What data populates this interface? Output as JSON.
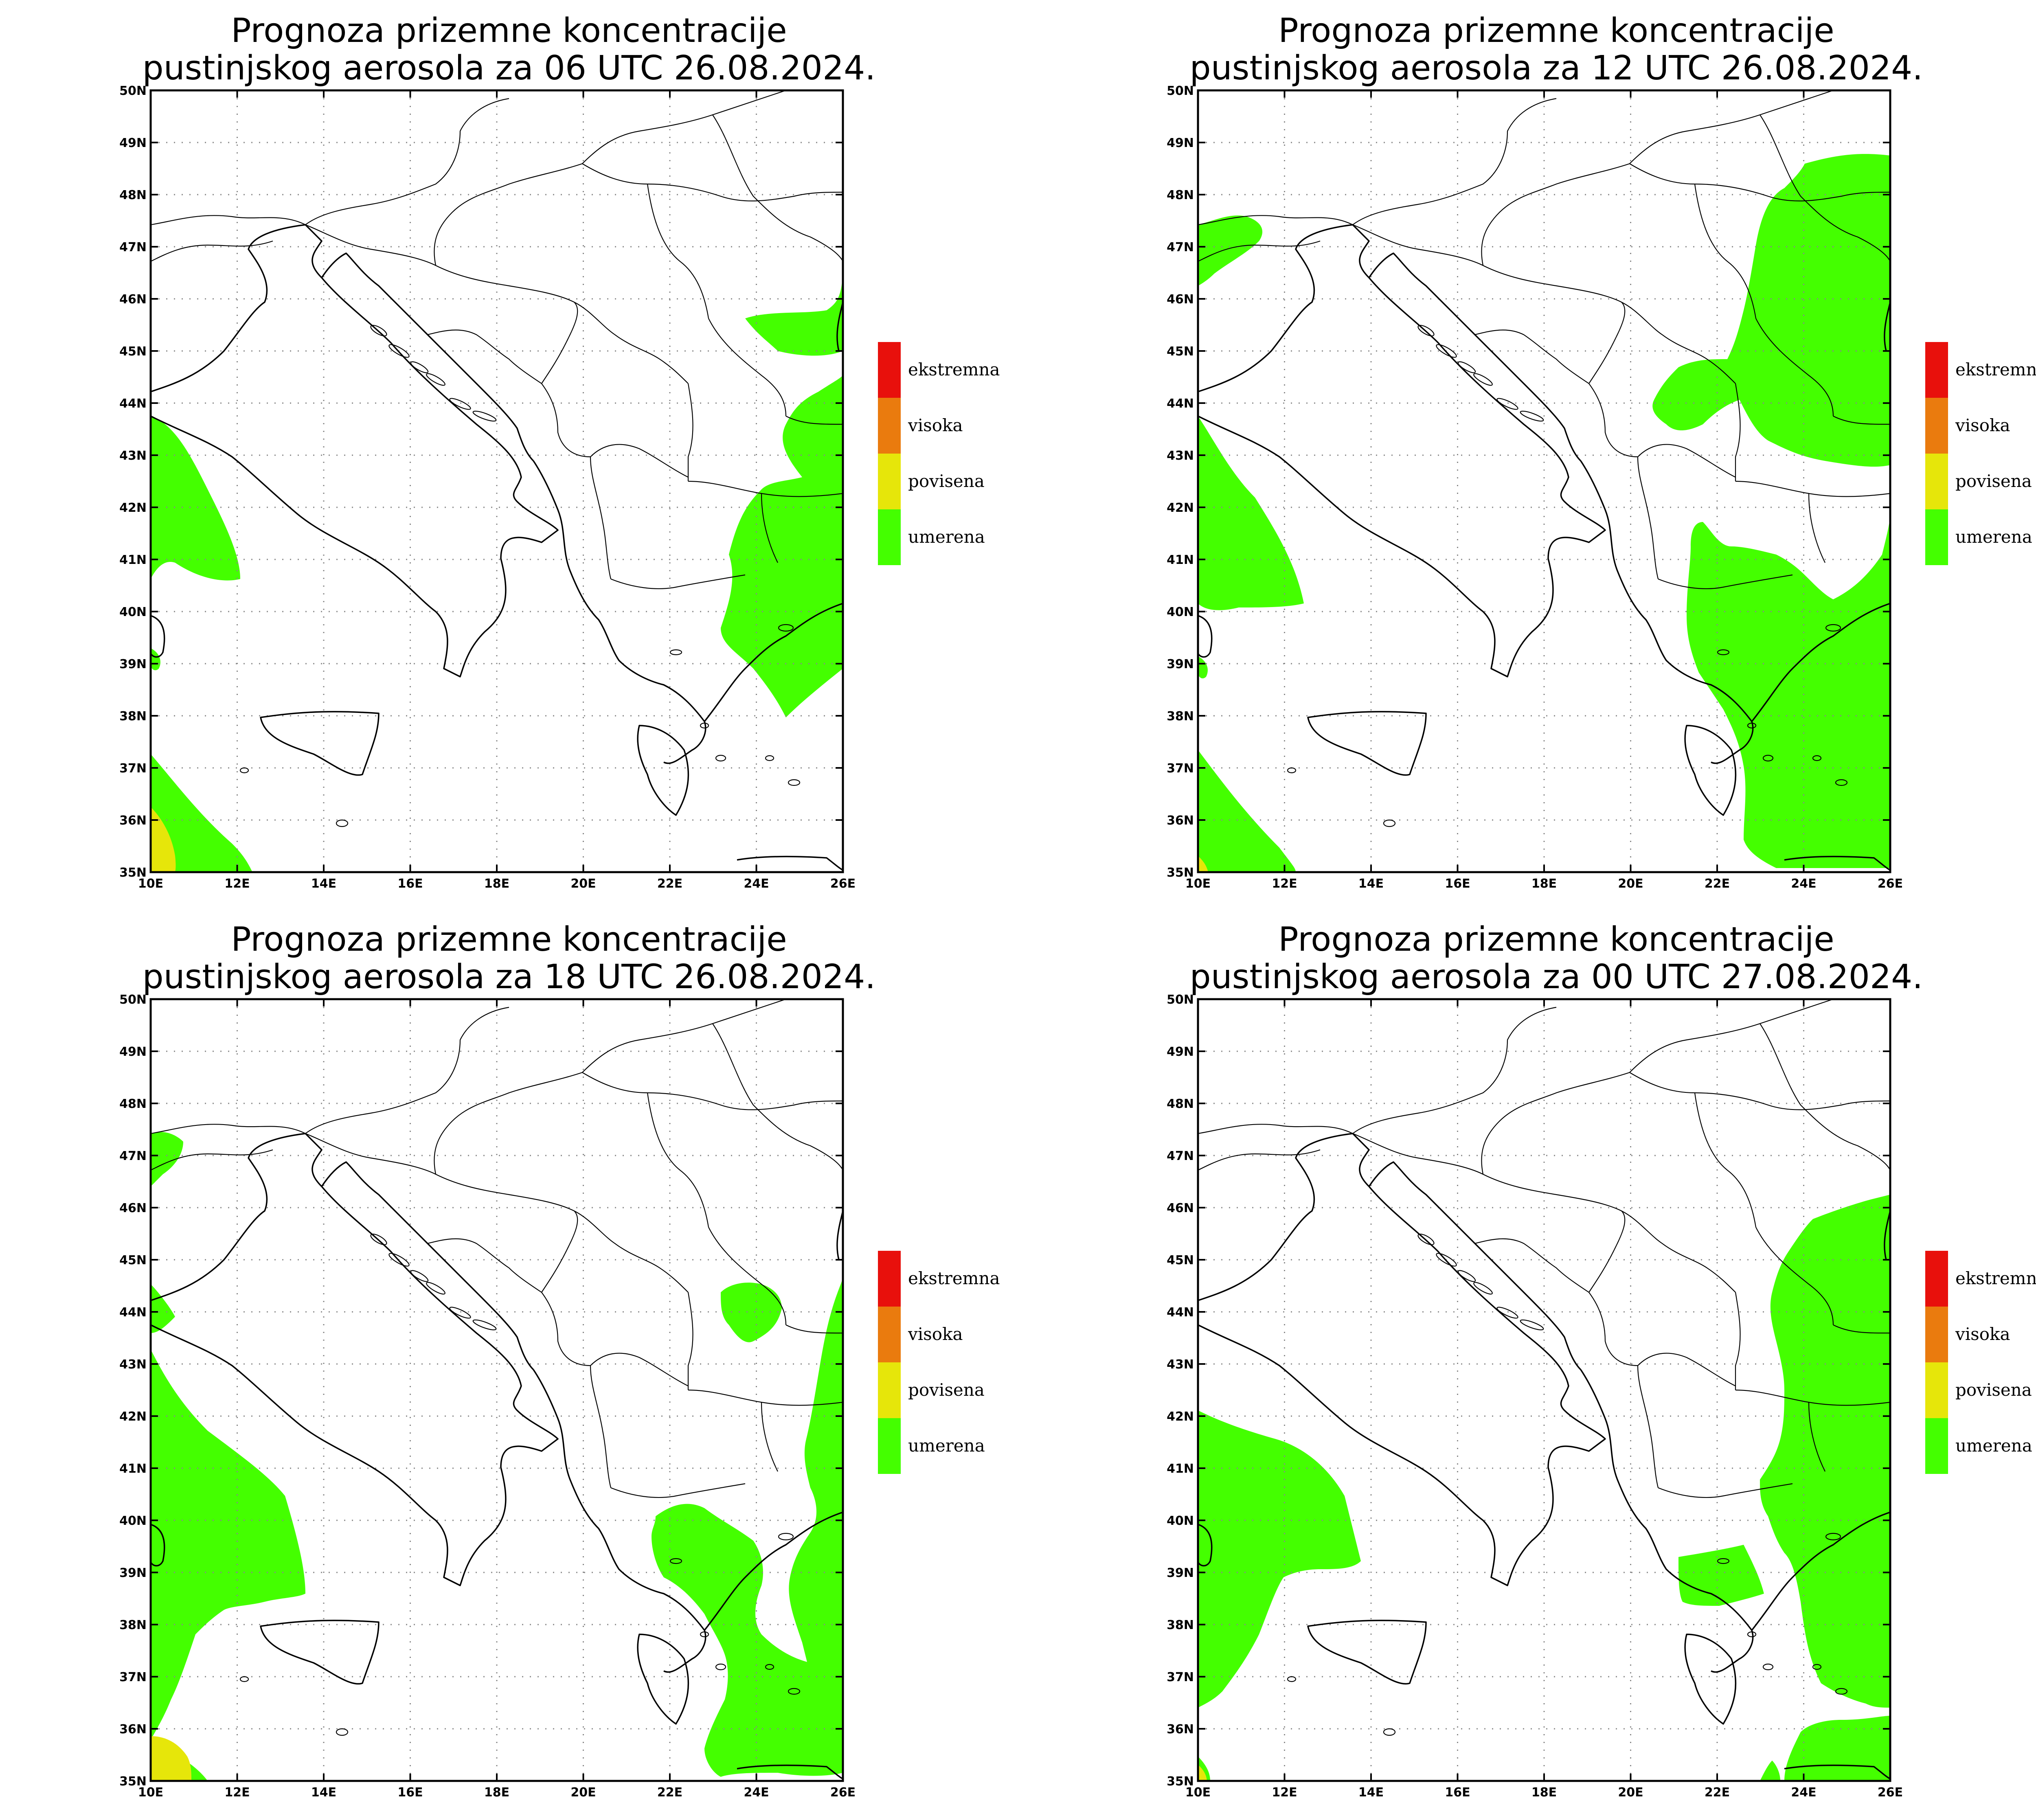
{
  "panels": [
    {
      "title_line1": "Prognoza prizemne koncentracije",
      "title_line2": "pustinjskog aerosola za 06 UTC 26.08.2024."
    },
    {
      "title_line1": "Prognoza prizemne koncentracije",
      "title_line2": "pustinjskog aerosola za 12 UTC 26.08.2024."
    },
    {
      "title_line1": "Prognoza prizemne koncentracije",
      "title_line2": "pustinjskog aerosola za 18 UTC 26.08.2024."
    },
    {
      "title_line1": "Prognoza prizemne koncentracije",
      "title_line2": "pustinjskog aerosola za 00 UTC 27.08.2024."
    }
  ],
  "legend": [
    {
      "label": "ekstremna",
      "color": "#e8100c"
    },
    {
      "label": "visoka",
      "color": "#ea7b0e"
    },
    {
      "label": "povisena",
      "color": "#e6e60a"
    },
    {
      "label": "umerena",
      "color": "#44ff00"
    }
  ],
  "axes": {
    "lon_labels": [
      "10E",
      "12E",
      "14E",
      "16E",
      "18E",
      "20E",
      "22E",
      "24E",
      "26E"
    ],
    "lat_labels": [
      "35N",
      "36N",
      "37N",
      "38N",
      "39N",
      "40N",
      "41N",
      "42N",
      "43N",
      "44N",
      "45N",
      "46N",
      "47N",
      "48N",
      "49N",
      "50N"
    ]
  },
  "colors": {
    "dust_moderate": "#44ff00",
    "dust_elevated": "#e6e60a",
    "border": "#000000",
    "grid": "#888888"
  }
}
